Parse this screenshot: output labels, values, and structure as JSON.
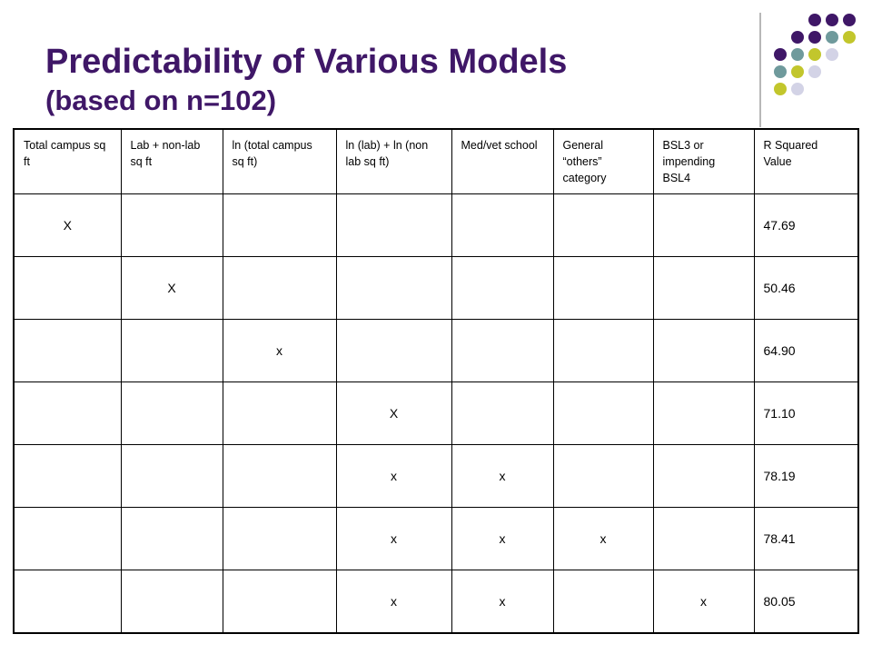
{
  "title": {
    "main": "Predictability of Various Models",
    "sub": "(based on n=102)"
  },
  "decoration": {
    "colors": {
      "purple": "#3f1767",
      "teal": "#6f9a9c",
      "olive": "#c2c62c",
      "lavender": "#d3d3e6"
    }
  },
  "table": {
    "headers": [
      "Total campus sq ft",
      "Lab + non-lab sq ft",
      "ln (total campus sq ft)",
      "ln (lab) + ln (non lab sq ft)",
      "Med/vet school",
      "General “others” category",
      "BSL3 or impending BSL4",
      "R Squared Value"
    ],
    "rows": [
      [
        "X",
        "",
        "",
        "",
        "",
        "",
        "",
        "47.69"
      ],
      [
        "",
        "X",
        "",
        "",
        "",
        "",
        "",
        "50.46"
      ],
      [
        "",
        "",
        "x",
        "",
        "",
        "",
        "",
        "64.90"
      ],
      [
        "",
        "",
        "",
        "X",
        "",
        "",
        "",
        "71.10"
      ],
      [
        "",
        "",
        "",
        "x",
        "x",
        "",
        "",
        "78.19"
      ],
      [
        "",
        "",
        "",
        "x",
        "x",
        "x",
        "",
        "78.41"
      ],
      [
        "",
        "",
        "",
        "x",
        "x",
        "",
        "x",
        "80.05"
      ]
    ]
  }
}
